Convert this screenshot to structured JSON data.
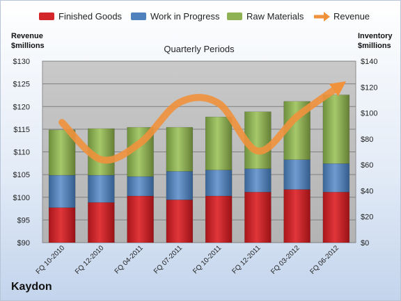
{
  "brand": "Kaydon",
  "colors": {
    "finished_goods": "#d3262a",
    "work_in_progress": "#4f81bd",
    "raw_materials": "#8eb254",
    "revenue": "#f0913c",
    "plot_bg": "#c0c0c0"
  },
  "chart_data": {
    "type": "bar",
    "stacked": true,
    "title": "Quarterly Periods",
    "categories": [
      "FQ 10-2010",
      "FQ 12-2010",
      "FQ 04-2011",
      "FQ 07-2011",
      "FQ 10-2011",
      "FQ 12-2011",
      "FQ 03-2012",
      "FQ 06-2012"
    ],
    "series": [
      {
        "name": "Finished Goods",
        "axis": "right",
        "values": [
          27,
          31,
          36,
          33,
          36,
          39,
          41,
          39
        ]
      },
      {
        "name": "Work in Progress",
        "axis": "right",
        "values": [
          25,
          21,
          15,
          22,
          20,
          18,
          23,
          22
        ]
      },
      {
        "name": "Raw Materials",
        "axis": "right",
        "values": [
          35,
          36,
          38,
          34,
          41,
          44,
          45,
          53
        ]
      },
      {
        "name": "Revenue",
        "type": "line",
        "axis": "left",
        "values": [
          116.5,
          108.3,
          112.0,
          120.9,
          120.7,
          110.2,
          117.8,
          124.0
        ]
      }
    ],
    "y_left": {
      "label": "Revenue\n$millions",
      "lines": [
        "Revenue",
        "$millions"
      ],
      "min": 90,
      "max": 130,
      "step": 5,
      "prefix": "$"
    },
    "y_right": {
      "label": "Inventory\n$millions",
      "lines": [
        "Inventory",
        "$millions"
      ],
      "min": 0,
      "max": 140,
      "step": 20,
      "prefix": "$"
    },
    "grid": true,
    "legend_position": "top"
  }
}
